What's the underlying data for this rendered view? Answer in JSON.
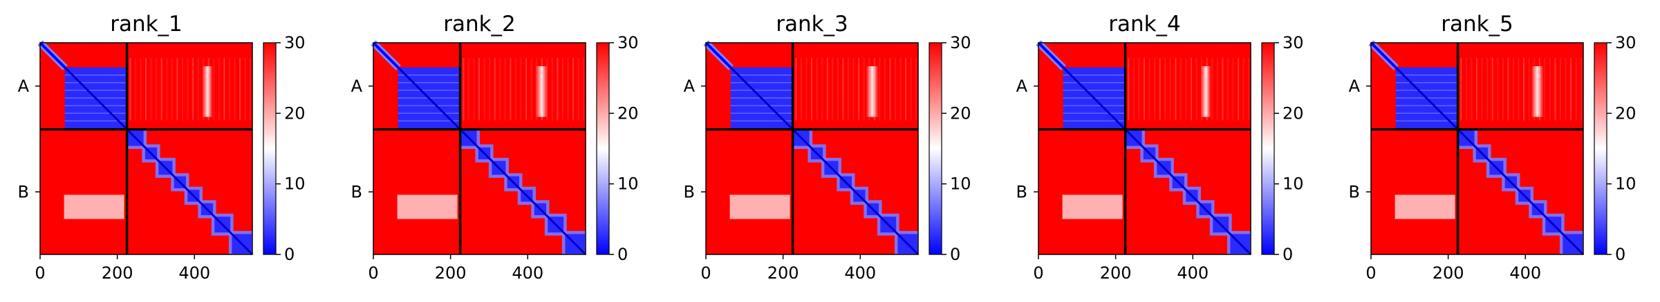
{
  "chart_data": [
    {
      "type": "heatmap",
      "title": "rank_1",
      "chains": [
        "A",
        "B"
      ],
      "chain_lengths": [
        225,
        325
      ],
      "xticks": [
        0,
        200,
        400
      ],
      "xlim": [
        0,
        550
      ],
      "ylim": [
        550,
        0
      ],
      "colorbar": {
        "ticks": [
          0,
          10,
          20,
          30
        ],
        "range": [
          0,
          30
        ],
        "colormap": "bwr"
      },
      "inter_chain_white_band": [
        420,
        440
      ]
    },
    {
      "type": "heatmap",
      "title": "rank_2",
      "chains": [
        "A",
        "B"
      ],
      "chain_lengths": [
        225,
        325
      ],
      "xticks": [
        0,
        200,
        400
      ],
      "xlim": [
        0,
        550
      ],
      "ylim": [
        550,
        0
      ],
      "colorbar": {
        "ticks": [
          0,
          10,
          20,
          30
        ],
        "range": [
          0,
          30
        ],
        "colormap": "bwr"
      },
      "inter_chain_white_band": [
        420,
        445
      ]
    },
    {
      "type": "heatmap",
      "title": "rank_3",
      "chains": [
        "A",
        "B"
      ],
      "chain_lengths": [
        225,
        325
      ],
      "xticks": [
        0,
        200,
        400
      ],
      "xlim": [
        0,
        550
      ],
      "ylim": [
        550,
        0
      ],
      "colorbar": {
        "ticks": [
          0,
          10,
          20,
          30
        ],
        "range": [
          0,
          30
        ],
        "colormap": "bwr"
      },
      "inter_chain_white_band": [
        415,
        440
      ]
    },
    {
      "type": "heatmap",
      "title": "rank_4",
      "chains": [
        "A",
        "B"
      ],
      "chain_lengths": [
        225,
        325
      ],
      "xticks": [
        0,
        200,
        400
      ],
      "xlim": [
        0,
        550
      ],
      "ylim": [
        550,
        0
      ],
      "colorbar": {
        "ticks": [
          0,
          10,
          20,
          30
        ],
        "range": [
          0,
          30
        ],
        "colormap": "bwr"
      },
      "inter_chain_white_band": [
        420,
        440
      ]
    },
    {
      "type": "heatmap",
      "title": "rank_5",
      "chains": [
        "A",
        "B"
      ],
      "chain_lengths": [
        225,
        325
      ],
      "xticks": [
        0,
        200,
        400
      ],
      "xlim": [
        0,
        550
      ],
      "ylim": [
        550,
        0
      ],
      "colorbar": {
        "ticks": [
          0,
          10,
          20,
          30
        ],
        "range": [
          0,
          30
        ],
        "colormap": "bwr"
      },
      "inter_chain_white_band": [
        415,
        440
      ]
    }
  ],
  "colors": {
    "high": "#ff0000",
    "mid": "#ffffff",
    "low": "#0000ff",
    "separator": "#000000"
  }
}
